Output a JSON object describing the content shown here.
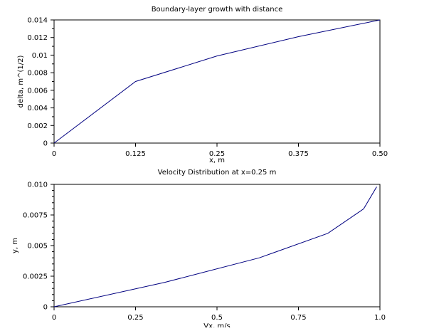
{
  "chart_data": [
    {
      "type": "line",
      "title": "Boundary-layer growth with distance",
      "xlabel": "x, m",
      "ylabel": "delta, m^(1/2)",
      "xlim": [
        0,
        0.5
      ],
      "ylim": [
        0,
        0.014
      ],
      "x_ticks": [
        0,
        0.125,
        0.25,
        0.375,
        0.5
      ],
      "x_tick_labels": [
        "0",
        "0.125",
        "0.25",
        "0.375",
        "0.50"
      ],
      "y_ticks": [
        0,
        0.002,
        0.004,
        0.006,
        0.008,
        0.01,
        0.012,
        0.014
      ],
      "y_tick_labels": [
        "0",
        "0.002",
        "0.004",
        "0.006",
        "0.008",
        "0.01",
        "0.012",
        "0.014"
      ],
      "grid": false,
      "series": [
        {
          "color": "#000080",
          "x": [
            0,
            0.125,
            0.25,
            0.375,
            0.5
          ],
          "y": [
            0,
            0.007,
            0.0099,
            0.0121,
            0.014
          ]
        }
      ]
    },
    {
      "type": "line",
      "title": "Velocity Distribution at x=0.25 m",
      "xlabel": "Vx, m/s",
      "ylabel": "y, m",
      "xlim": [
        0,
        1.0
      ],
      "ylim": [
        0,
        0.01
      ],
      "x_ticks": [
        0,
        0.25,
        0.5,
        0.75,
        1.0
      ],
      "x_tick_labels": [
        "0",
        "0.25",
        "0.5",
        "0.75",
        "1.0"
      ],
      "y_ticks": [
        0,
        0.0025,
        0.005,
        0.0075,
        0.01
      ],
      "y_tick_labels": [
        "0",
        "0.0025",
        "0.005",
        "0.0075",
        "0.010"
      ],
      "grid": false,
      "series": [
        {
          "color": "#000080",
          "x": [
            0,
            0.34,
            0.63,
            0.84,
            0.95,
            0.99
          ],
          "y": [
            0,
            0.002,
            0.004,
            0.006,
            0.008,
            0.0098
          ]
        }
      ]
    }
  ]
}
